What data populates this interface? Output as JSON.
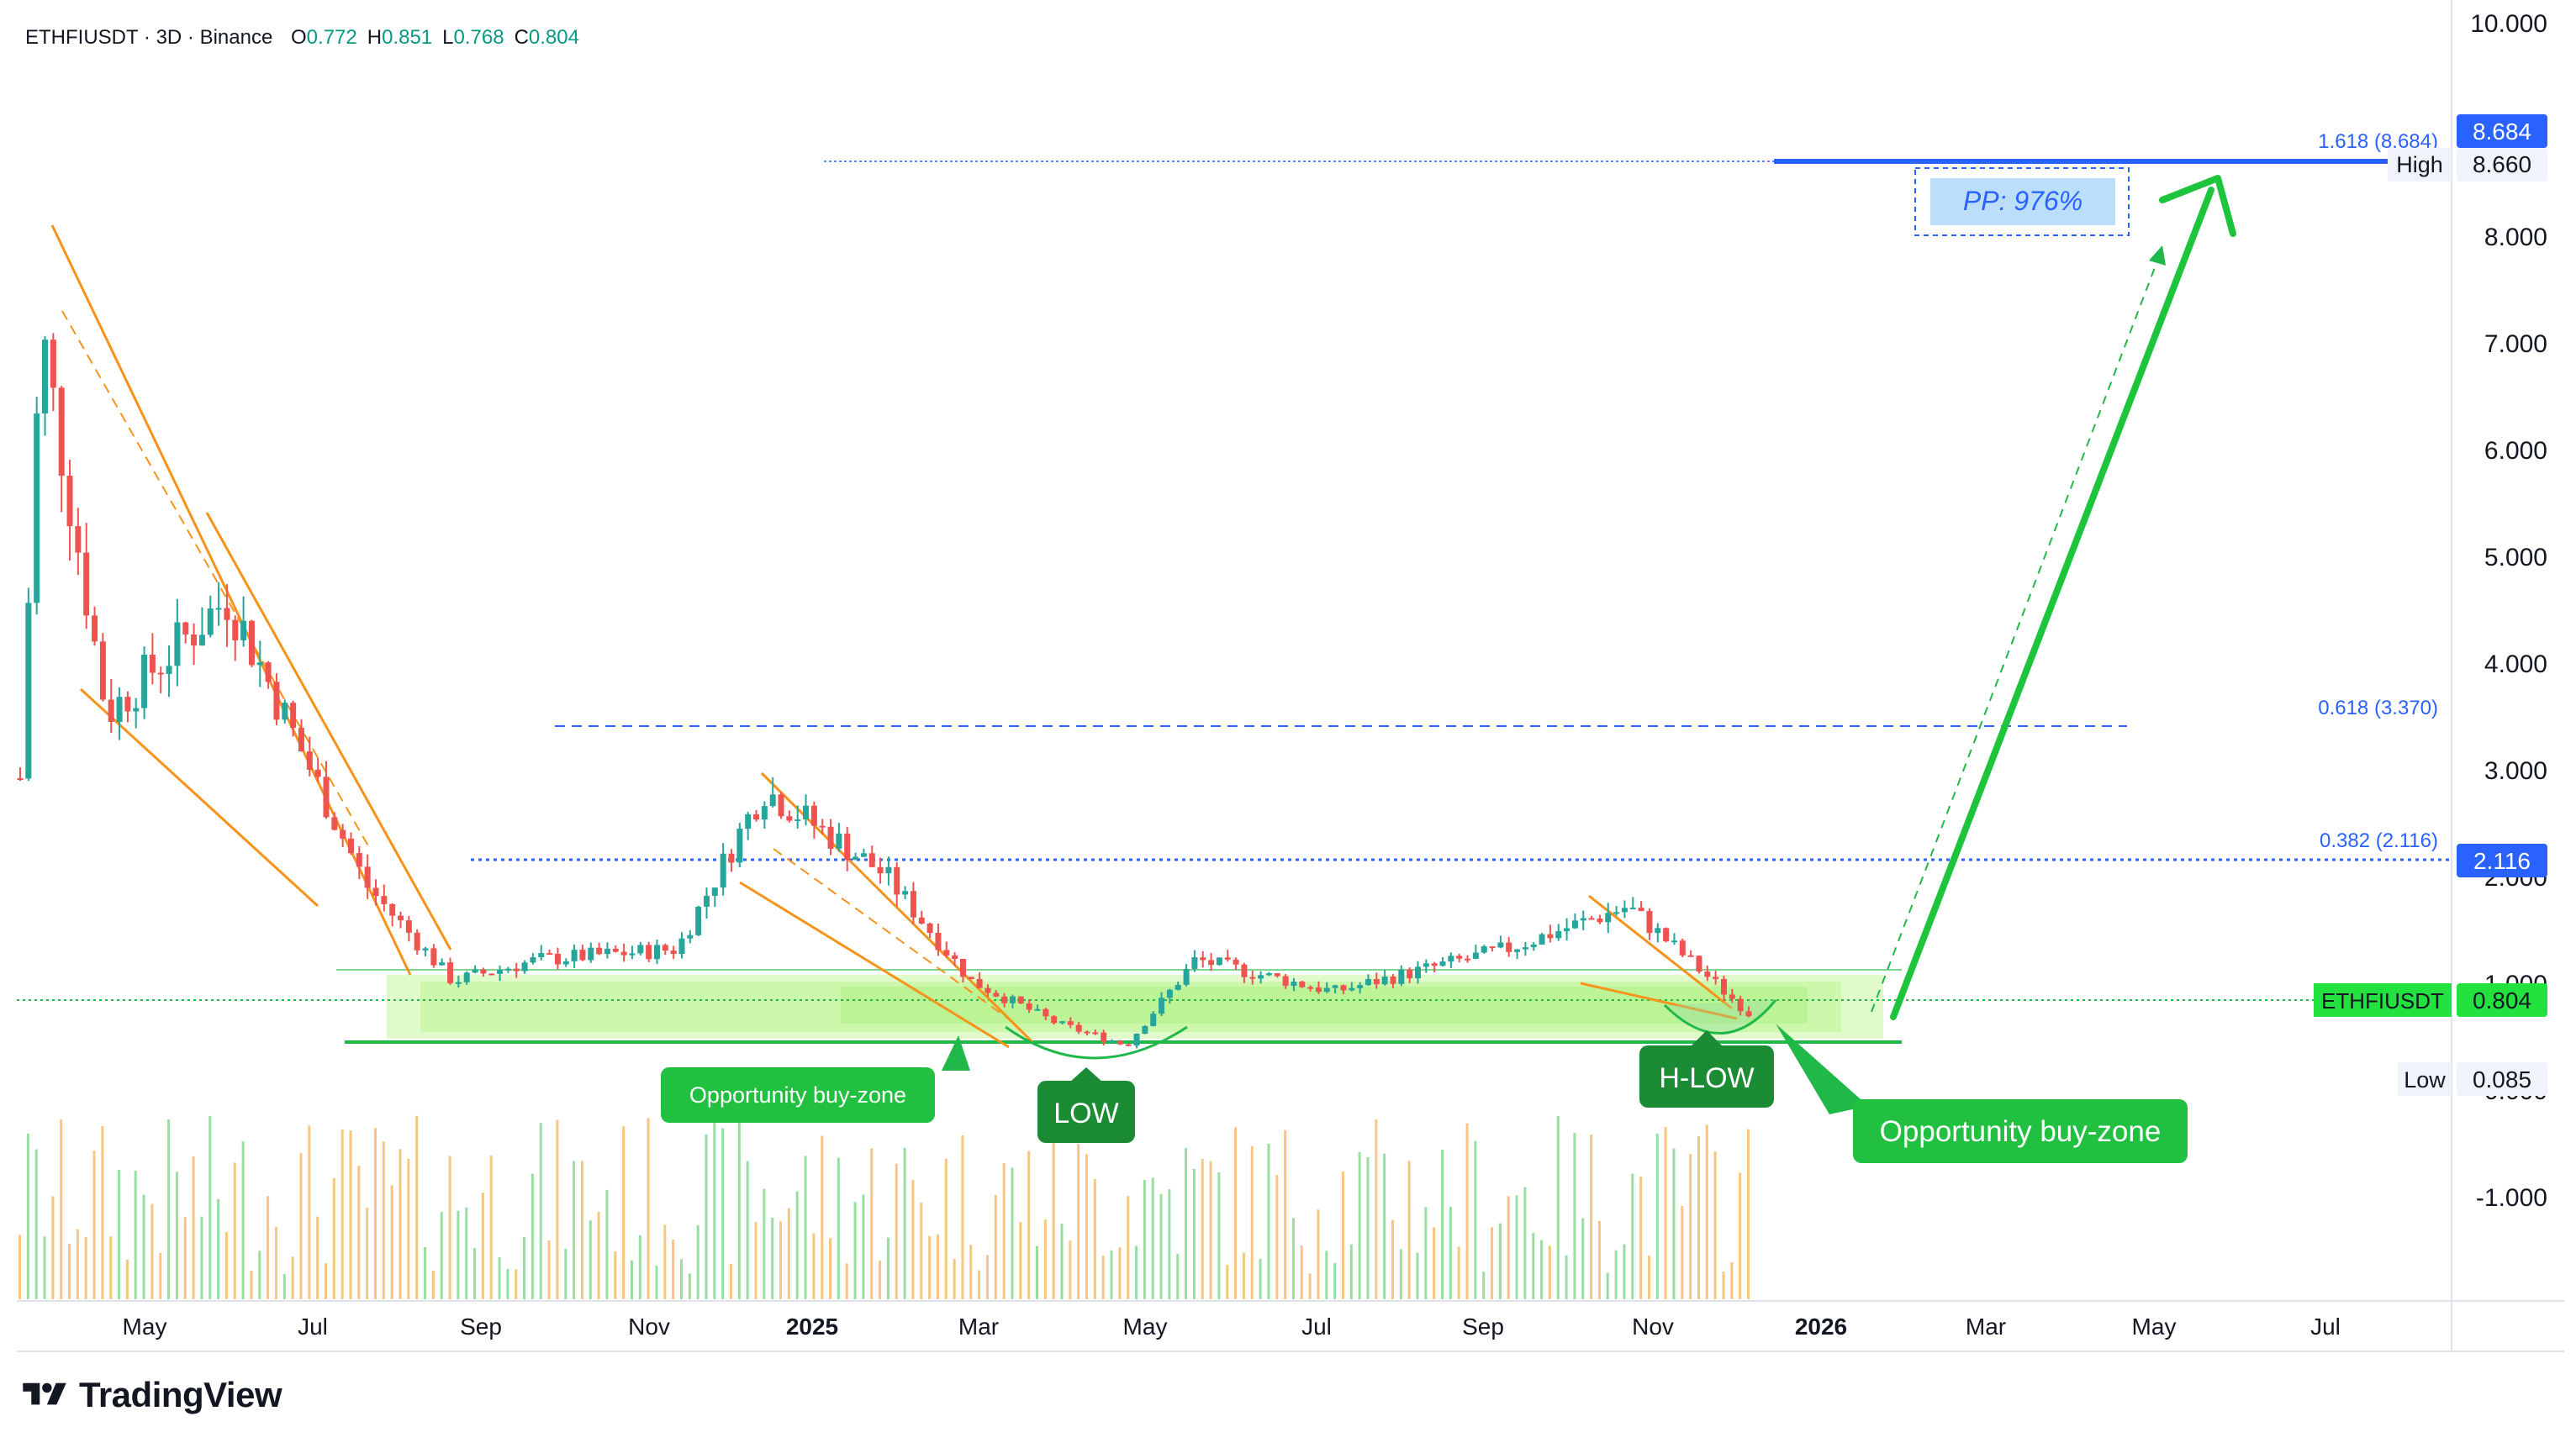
{
  "header": {
    "symbol": "ETHFIUSDT",
    "interval": "3D",
    "exchange": "Binance",
    "ohlc": {
      "o": "0.772",
      "h": "0.851",
      "l": "0.768",
      "c": "0.804"
    }
  },
  "brand": {
    "name": "TradingView"
  },
  "colors": {
    "up": "#26a69a",
    "green": "#21b84a",
    "down": "#ef5350",
    "blue": "#2962ff",
    "orange": "#f7931a",
    "zone": "#bdf58f"
  },
  "annotations": {
    "opportunity_left": "Opportunity buy-zone",
    "opportunity_right": "Opportunity buy-zone",
    "low": "LOW",
    "h_low": "H-LOW",
    "pp": "PP: 976%"
  },
  "chart_data": {
    "type": "candlestick",
    "symbol": "ETHFIUSDT",
    "x_axis_labels": [
      "May",
      "Jul",
      "Sep",
      "Nov",
      "2025",
      "Mar",
      "May",
      "Jul",
      "Sep",
      "Nov",
      "2026",
      "Mar",
      "May",
      "Jul"
    ],
    "y_ticks": [
      "10.000",
      "8.000",
      "7.000",
      "6.000",
      "5.000",
      "4.000",
      "3.000",
      "2.000",
      "1.000",
      "0.000",
      "-1.000"
    ],
    "price_labels": [
      {
        "text": "8.684",
        "value": 8.684,
        "style": "blue"
      },
      {
        "text": "8.660",
        "value": 8.66,
        "style": "gray",
        "tag": "High"
      },
      {
        "text": "2.116",
        "value": 2.116,
        "style": "blue"
      },
      {
        "text": "0.804",
        "value": 0.804,
        "style": "green",
        "tag": "ETHFIUSDT"
      },
      {
        "text": "0.085",
        "value": 0.085,
        "style": "gray",
        "tag": "Low"
      }
    ],
    "fib_levels": [
      {
        "label": "1.618 (8.684)",
        "value": 8.684
      },
      {
        "label": "0.618 (3.370)",
        "value": 3.37
      },
      {
        "label": "0.382 (2.116)",
        "value": 2.116
      }
    ],
    "buy_zone": [
      0.66,
      1.1
    ],
    "approx_closes": [
      {
        "date": "Apr 2024",
        "price": 3.0
      },
      {
        "date": "Apr 2024",
        "price": 7.2
      },
      {
        "date": "May 2024",
        "price": 3.6
      },
      {
        "date": "Jun 2024",
        "price": 4.7
      },
      {
        "date": "Jul 2024",
        "price": 2.0
      },
      {
        "date": "Aug 2024",
        "price": 1.1
      },
      {
        "date": "Sep 2024",
        "price": 1.3
      },
      {
        "date": "Nov 2024",
        "price": 1.4
      },
      {
        "date": "Dec 2024",
        "price": 2.9
      },
      {
        "date": "Jan 2025",
        "price": 2.1
      },
      {
        "date": "Feb 2025",
        "price": 1.1
      },
      {
        "date": "Mar 2025",
        "price": 0.7
      },
      {
        "date": "Apr 2025",
        "price": 0.5
      },
      {
        "date": "May 2025",
        "price": 1.3
      },
      {
        "date": "Jul 2025",
        "price": 1.0
      },
      {
        "date": "Sep 2025",
        "price": 1.4
      },
      {
        "date": "Oct 2025",
        "price": 1.8
      },
      {
        "date": "Nov 2025",
        "price": 0.8
      }
    ]
  }
}
